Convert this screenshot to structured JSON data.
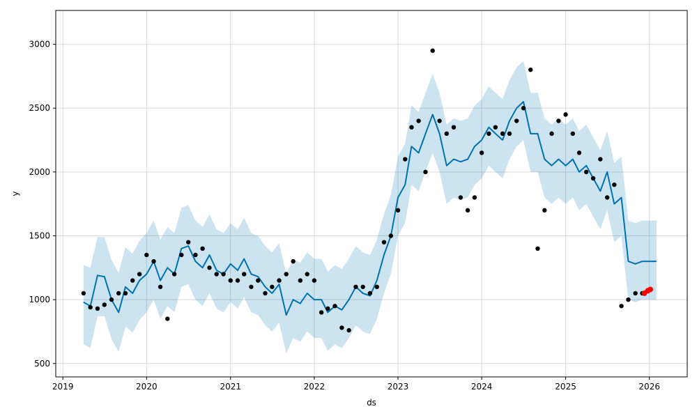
{
  "chart_data": {
    "type": "line",
    "title": "",
    "xlabel": "ds",
    "ylabel": "y",
    "grid": true,
    "legend": "none",
    "x_range": [
      "2018-12-01",
      "2026-06-15"
    ],
    "y_range": [
      395,
      3265
    ],
    "x_ticks": [
      {
        "date": "2019-01-01",
        "label": "2019"
      },
      {
        "date": "2020-01-01",
        "label": "2020"
      },
      {
        "date": "2021-01-01",
        "label": "2021"
      },
      {
        "date": "2022-01-01",
        "label": "2022"
      },
      {
        "date": "2023-01-01",
        "label": "2023"
      },
      {
        "date": "2024-01-01",
        "label": "2024"
      },
      {
        "date": "2025-01-01",
        "label": "2025"
      },
      {
        "date": "2026-01-01",
        "label": "2026"
      }
    ],
    "y_ticks": [
      500,
      1000,
      1500,
      2000,
      2500,
      3000
    ],
    "colors": {
      "observed": "#000000",
      "forecast_line": "#0072b2",
      "uncertainty_band": "#0072b2",
      "recent_points": "#ff0000",
      "grid": "#d9d9d9"
    },
    "series": [
      {
        "kind": "forecast",
        "x": [
          "2019-04-01",
          "2019-05-01",
          "2019-06-01",
          "2019-07-01",
          "2019-08-01",
          "2019-09-01",
          "2019-10-01",
          "2019-11-01",
          "2019-12-01",
          "2020-01-01",
          "2020-02-01",
          "2020-03-01",
          "2020-04-01",
          "2020-05-01",
          "2020-06-01",
          "2020-07-01",
          "2020-08-01",
          "2020-09-01",
          "2020-10-01",
          "2020-11-01",
          "2020-12-01",
          "2021-01-01",
          "2021-02-01",
          "2021-03-01",
          "2021-04-01",
          "2021-05-01",
          "2021-06-01",
          "2021-07-01",
          "2021-08-01",
          "2021-09-01",
          "2021-10-01",
          "2021-11-01",
          "2021-12-01",
          "2022-01-01",
          "2022-02-01",
          "2022-03-01",
          "2022-04-01",
          "2022-05-01",
          "2022-06-01",
          "2022-07-01",
          "2022-08-01",
          "2022-09-01",
          "2022-10-01",
          "2022-11-01",
          "2022-12-01",
          "2023-01-01",
          "2023-02-01",
          "2023-03-01",
          "2023-04-01",
          "2023-05-01",
          "2023-06-01",
          "2023-07-01",
          "2023-08-01",
          "2023-09-01",
          "2023-10-01",
          "2023-11-01",
          "2023-12-01",
          "2024-01-01",
          "2024-02-01",
          "2024-03-01",
          "2024-04-01",
          "2024-05-01",
          "2024-06-01",
          "2024-07-01",
          "2024-08-01",
          "2024-09-01",
          "2024-10-01",
          "2024-11-01",
          "2024-12-01",
          "2025-01-01",
          "2025-02-01",
          "2025-03-01",
          "2025-04-01",
          "2025-05-01",
          "2025-06-01",
          "2025-07-01",
          "2025-08-01",
          "2025-09-01",
          "2025-10-01",
          "2025-11-01",
          "2025-12-01",
          "2026-01-01",
          "2026-02-01"
        ],
        "yhat": [
          980,
          950,
          1190,
          1180,
          1000,
          900,
          1100,
          1050,
          1150,
          1200,
          1300,
          1150,
          1250,
          1200,
          1400,
          1420,
          1300,
          1250,
          1350,
          1230,
          1200,
          1280,
          1230,
          1320,
          1200,
          1180,
          1100,
          1050,
          1120,
          880,
          1000,
          970,
          1050,
          1000,
          1000,
          900,
          950,
          920,
          1000,
          1100,
          1050,
          1030,
          1150,
          1350,
          1500,
          1800,
          1900,
          2200,
          2150,
          2300,
          2450,
          2300,
          2050,
          2100,
          2080,
          2100,
          2200,
          2250,
          2350,
          2300,
          2250,
          2400,
          2500,
          2550,
          2300,
          2300,
          2100,
          2050,
          2100,
          2050,
          2100,
          2000,
          2050,
          1950,
          1850,
          2000,
          1750,
          1800,
          1300,
          1280,
          1300,
          1300,
          1300
        ],
        "yhat_lower": [
          650,
          620,
          870,
          870,
          690,
          590,
          790,
          740,
          840,
          900,
          1000,
          850,
          950,
          900,
          1100,
          1120,
          1000,
          950,
          1050,
          930,
          900,
          980,
          930,
          1020,
          900,
          880,
          800,
          750,
          820,
          580,
          700,
          670,
          750,
          700,
          700,
          600,
          650,
          620,
          700,
          800,
          750,
          730,
          850,
          1050,
          1200,
          1500,
          1600,
          1900,
          1850,
          2000,
          2150,
          2000,
          1750,
          1800,
          1780,
          1800,
          1900,
          1950,
          2050,
          2000,
          1950,
          2100,
          2200,
          2250,
          2000,
          2000,
          1800,
          1750,
          1800,
          1750,
          1800,
          1700,
          1750,
          1650,
          1550,
          1700,
          1450,
          1500,
          1000,
          980,
          1000,
          1000,
          1000
        ],
        "yhat_upper": [
          1270,
          1250,
          1490,
          1490,
          1310,
          1210,
          1410,
          1360,
          1460,
          1520,
          1620,
          1470,
          1570,
          1520,
          1720,
          1740,
          1620,
          1570,
          1670,
          1550,
          1520,
          1600,
          1550,
          1640,
          1520,
          1500,
          1420,
          1370,
          1440,
          1200,
          1320,
          1290,
          1370,
          1320,
          1320,
          1220,
          1270,
          1240,
          1320,
          1420,
          1370,
          1350,
          1470,
          1670,
          1820,
          2120,
          2220,
          2520,
          2470,
          2620,
          2770,
          2620,
          2370,
          2420,
          2400,
          2420,
          2520,
          2570,
          2670,
          2620,
          2570,
          2720,
          2820,
          2870,
          2620,
          2620,
          2420,
          2370,
          2420,
          2370,
          2420,
          2320,
          2370,
          2270,
          2170,
          2320,
          2070,
          2120,
          1620,
          1600,
          1620,
          1620,
          1620
        ]
      },
      {
        "kind": "observed",
        "x": [
          "2019-04-01",
          "2019-05-01",
          "2019-06-01",
          "2019-07-01",
          "2019-08-01",
          "2019-09-01",
          "2019-10-01",
          "2019-11-01",
          "2019-12-01",
          "2020-01-01",
          "2020-02-01",
          "2020-03-01",
          "2020-04-01",
          "2020-05-01",
          "2020-06-01",
          "2020-07-01",
          "2020-08-01",
          "2020-09-01",
          "2020-10-01",
          "2020-11-01",
          "2020-12-01",
          "2021-01-01",
          "2021-02-01",
          "2021-03-01",
          "2021-04-01",
          "2021-05-01",
          "2021-06-01",
          "2021-07-01",
          "2021-08-01",
          "2021-09-01",
          "2021-10-01",
          "2021-11-01",
          "2021-12-01",
          "2022-01-01",
          "2022-02-01",
          "2022-03-01",
          "2022-04-01",
          "2022-05-01",
          "2022-06-01",
          "2022-07-01",
          "2022-08-01",
          "2022-09-01",
          "2022-10-01",
          "2022-11-01",
          "2022-12-01",
          "2023-01-01",
          "2023-02-01",
          "2023-03-01",
          "2023-04-01",
          "2023-05-01",
          "2023-06-01",
          "2023-07-01",
          "2023-08-01",
          "2023-09-01",
          "2023-10-01",
          "2023-11-01",
          "2023-12-01",
          "2024-01-01",
          "2024-02-01",
          "2024-03-01",
          "2024-04-01",
          "2024-05-01",
          "2024-06-01",
          "2024-07-01",
          "2024-08-01",
          "2024-09-01",
          "2024-10-01",
          "2024-11-01",
          "2024-12-01",
          "2025-01-01",
          "2025-02-01",
          "2025-03-01",
          "2025-04-01",
          "2025-05-01",
          "2025-06-01",
          "2025-07-01",
          "2025-08-01",
          "2025-09-01",
          "2025-10-01",
          "2025-11-01",
          "2025-12-01"
        ],
        "y": [
          1050,
          940,
          930,
          960,
          1000,
          1050,
          1050,
          1150,
          1200,
          1350,
          1300,
          1100,
          850,
          1200,
          1350,
          1450,
          1350,
          1400,
          1250,
          1200,
          1200,
          1150,
          1150,
          1200,
          1100,
          1150,
          1050,
          1100,
          1150,
          1200,
          1300,
          1150,
          1200,
          1150,
          900,
          930,
          950,
          780,
          760,
          1100,
          1100,
          1050,
          1100,
          1450,
          1500,
          1700,
          2100,
          2350,
          2400,
          2000,
          2950,
          2400,
          2300,
          2350,
          1800,
          1700,
          1800,
          2150,
          2300,
          2350,
          2300,
          2300,
          2400,
          2500,
          2800,
          1400,
          1700,
          2300,
          2400,
          2450,
          2300,
          2150,
          2000,
          1950,
          2100,
          1800,
          1900,
          950,
          1000,
          1050,
          1050
        ]
      },
      {
        "kind": "recent",
        "x": [
          "2025-12-10",
          "2025-12-25",
          "2026-01-05"
        ],
        "y": [
          1050,
          1070,
          1080
        ]
      }
    ]
  }
}
